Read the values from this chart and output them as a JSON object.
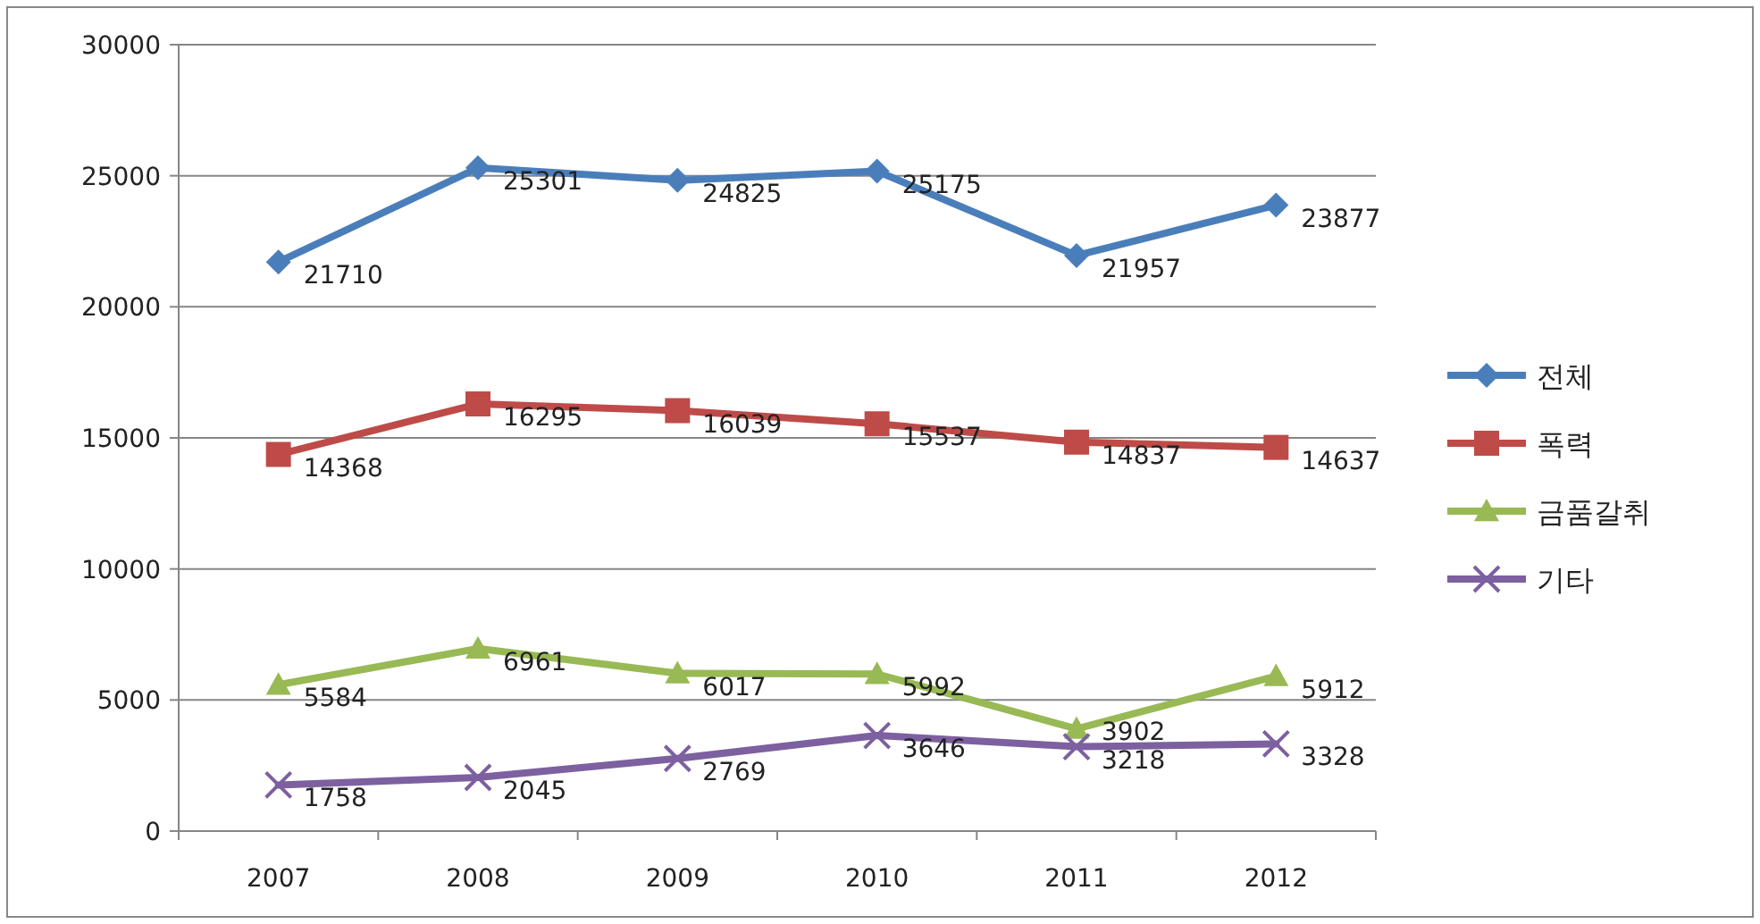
{
  "chart_data": {
    "type": "line",
    "categories": [
      "2007",
      "2008",
      "2009",
      "2010",
      "2011",
      "2012"
    ],
    "series": [
      {
        "name": "전체",
        "color": "#4a7ebb",
        "marker": "diamond",
        "values": [
          21710,
          25301,
          24825,
          25175,
          21957,
          23877
        ]
      },
      {
        "name": "폭력",
        "color": "#be4b48",
        "marker": "square",
        "values": [
          14368,
          16295,
          16039,
          15537,
          14837,
          14637
        ]
      },
      {
        "name": "금품갈취",
        "color": "#98b954",
        "marker": "triangle",
        "values": [
          5584,
          6961,
          6017,
          5992,
          3902,
          5912
        ]
      },
      {
        "name": "기타",
        "color": "#7d60a0",
        "marker": "cross",
        "values": [
          1758,
          2045,
          2769,
          3646,
          3218,
          3328
        ]
      }
    ],
    "ylim": [
      0,
      30000
    ],
    "yticks": [
      0,
      5000,
      10000,
      15000,
      20000,
      25000,
      30000
    ],
    "grid": "y",
    "legend": "right",
    "data_labels": true,
    "line_style": "solid"
  }
}
